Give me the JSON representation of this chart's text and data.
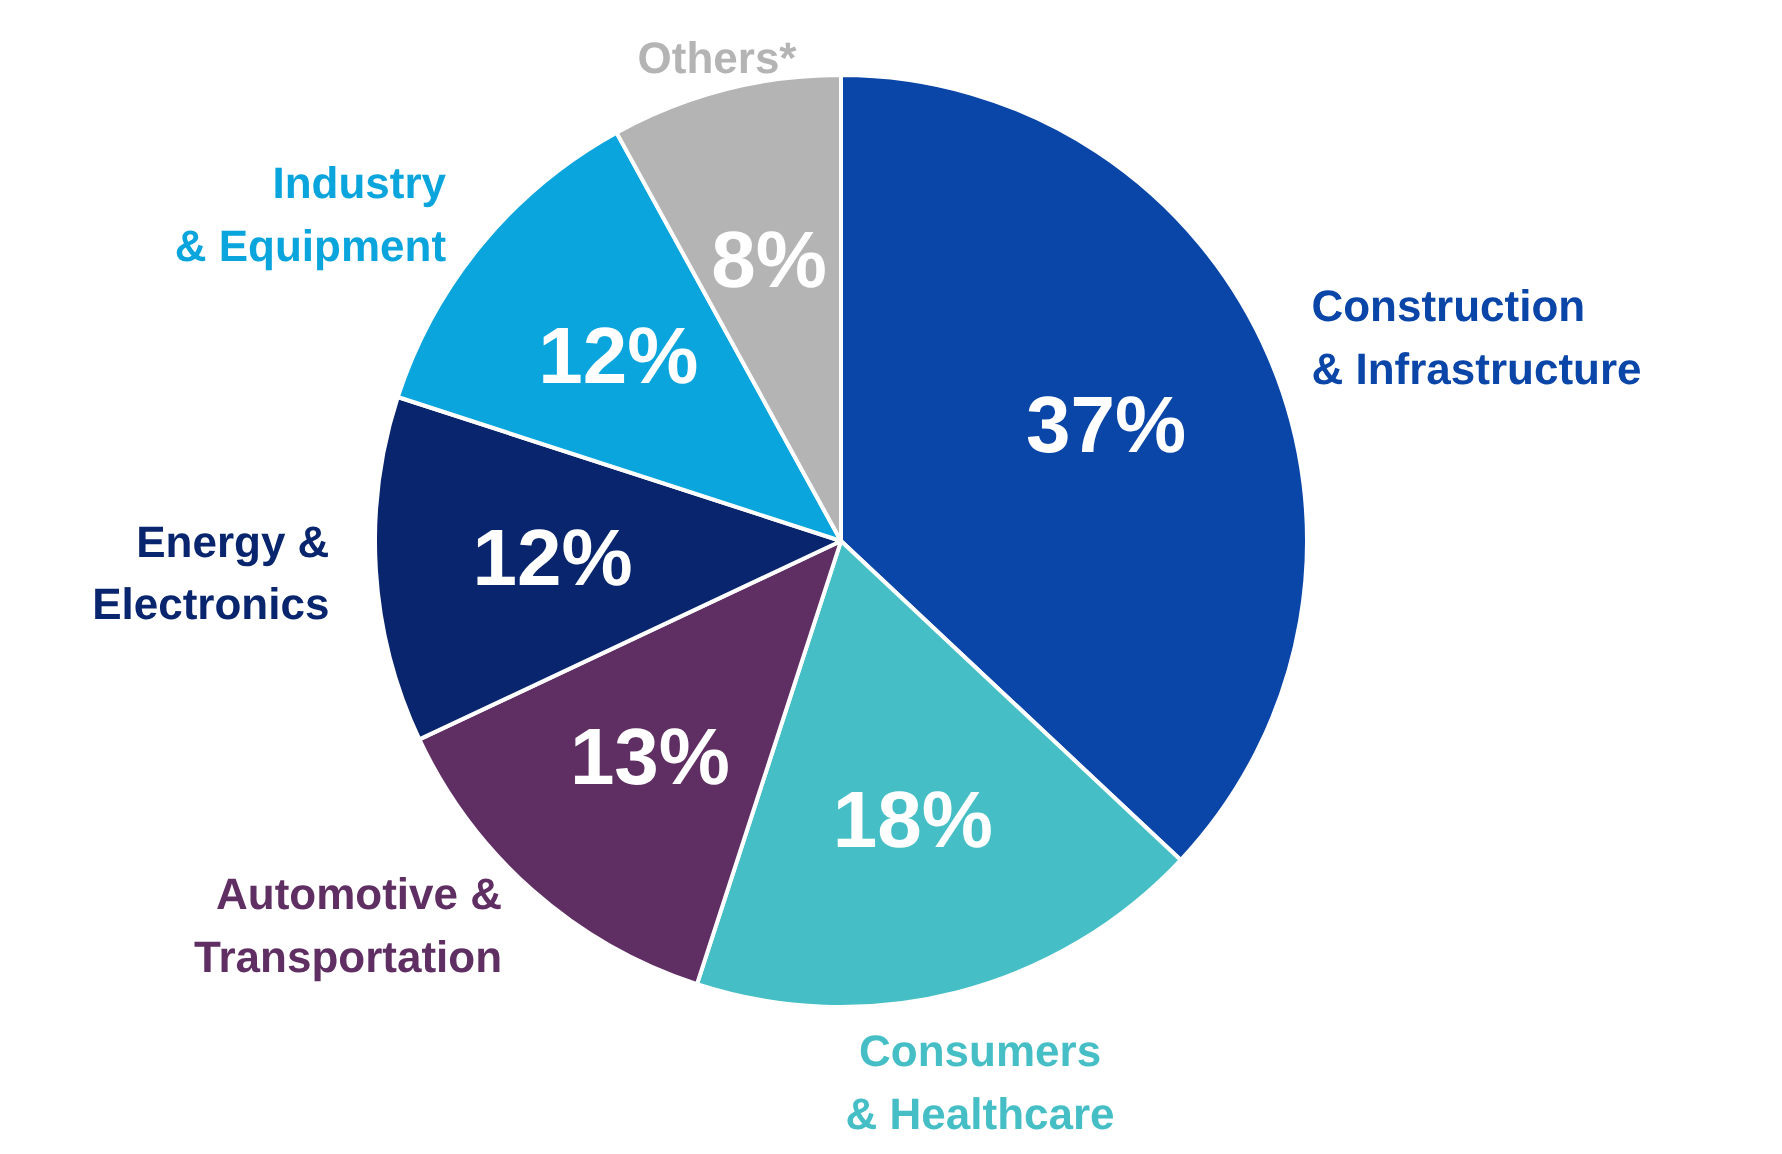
{
  "chart_data": {
    "type": "pie",
    "categories": [
      "Construction\n& Infrastructure",
      "Consumers\n& Healthcare",
      "Automotive &\nTransportation",
      "Energy &\nElectronics",
      "Industry\n& Equipment",
      "Others*"
    ],
    "values": [
      37,
      18,
      13,
      12,
      12,
      8
    ],
    "colors": [
      "#0a45a8",
      "#45bec6",
      "#5f2f63",
      "#08256e",
      "#0aa5dc",
      "#b4b4b4"
    ],
    "value_labels": [
      "37%",
      "18%",
      "13%",
      "12%",
      "12%",
      "8%"
    ]
  }
}
